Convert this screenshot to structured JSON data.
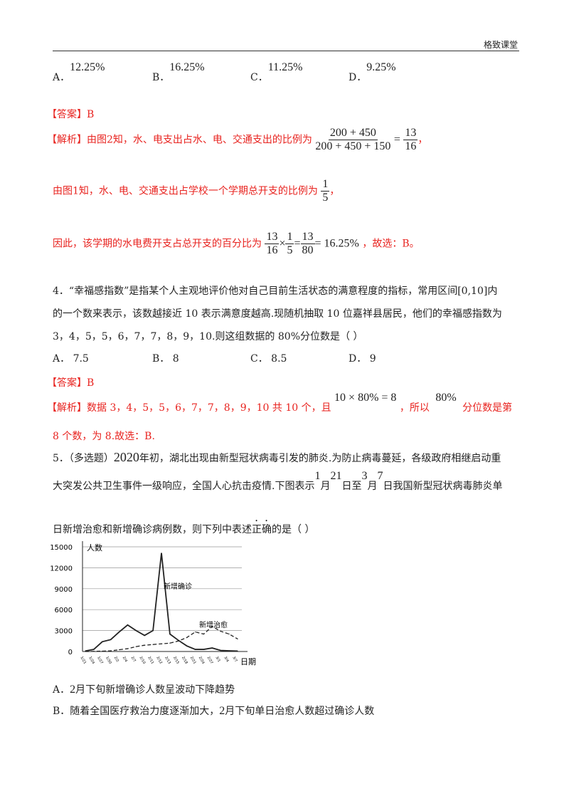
{
  "header": {
    "brand": "格致课堂"
  },
  "q3": {
    "options": [
      {
        "letter": "A．",
        "value": "12.25%"
      },
      {
        "letter": "B．",
        "value": "16.25%"
      },
      {
        "letter": "C．",
        "value": "11.25%"
      },
      {
        "letter": "D．",
        "value": "9.25%"
      }
    ],
    "answer": "【答案】B",
    "analysis1": "【解析】由图2知，水、电支出占水、电、交通支出的比例为",
    "frac1_num": "200 + 450",
    "frac1_den": "200 + 450 + 150",
    "frac1_eq": "=",
    "frac1_rnum": "13",
    "frac1_rden": "16",
    "comma": "，",
    "analysis2": "由图1知，水、电、交通支出占学校一个学期总开支的比例为",
    "frac2_num": "1",
    "frac2_den": "5",
    "analysis3": "因此，该学期的水电费开支占总开支的百分比为",
    "calc": {
      "a_num": "13",
      "a_den": "16",
      "times": "×",
      "b_num": "1",
      "b_den": "5",
      "eq": "=",
      "c_num": "13",
      "c_den": "80",
      "result": "= 16.25%"
    },
    "analysis3_end": "，故选：B。"
  },
  "q4": {
    "line1": "4．“幸福感指数”是指某个人主观地评价他对自己目前生活状态的满意程度的指标，常用区间[0,10]内",
    "line2": "的一个数来表示，该数越接近 10 表示满意度越高.现随机抽取 10 位嘉祥县居民，他们的幸福感指数为",
    "line3": "3，4，5，5，6，7，7，8，9，10.则这组数据的  80%分位数是（      ）",
    "options": [
      {
        "letter": "A．",
        "value": "7.5"
      },
      {
        "letter": "B．",
        "value": "8"
      },
      {
        "letter": "C．",
        "value": "8.5"
      },
      {
        "letter": "D．",
        "value": "9"
      }
    ],
    "answer": "【答案】B",
    "analysis1": "【解析】数据 3，4，5，5，6，7，7，8，9，10 共 10 个，且",
    "expr": "10 × 80% = 8",
    "mid": "，所以",
    "pct": "80%",
    "end": "分位数是第",
    "analysis2": "8 个数，为 8.故选：B."
  },
  "q5": {
    "line1a": "5．（多选题）",
    "year": "2020",
    "line1b": "年初，湖北出现由新型冠状病毒引发的肺炎.为防止病毒蔓延，各级政府相继启动重",
    "line2a": "大突发公共卫生事件一级响应，全国人心抗击疫情.下图表示",
    "m1": "1",
    "yue": "月",
    "d1": "21",
    "ri": "日至",
    "m2": "3",
    "yue2": "月",
    "d2": "7",
    "line2b": "日我国新型冠状病毒肺炎单",
    "line3a": "日新增治愈和新增确诊病例数，则下列中表述",
    "emph": "正确",
    "line3b": "的是（      ）",
    "optA_pre": "A．",
    "optA_num": "2",
    "optA_text": "月下旬新增确诊人数呈波动下降趋势",
    "optB_pre": "B．随着全国医疗救治力度逐渐加大，",
    "optB_num": "2",
    "optB_text": "月下旬单日治愈人数超过确诊人数"
  },
  "chart_data": {
    "type": "line",
    "ylabel": "人数",
    "xlabel": "日期",
    "ylim": [
      0,
      15000
    ],
    "yticks": [
      "15000",
      "12000",
      "9000",
      "6000",
      "3000",
      "0"
    ],
    "grid": true,
    "x": [
      "1/21",
      "1/24",
      "1/27",
      "1/30",
      "2/2",
      "2/4",
      "2/7",
      "2/10",
      "2/11",
      "2/12",
      "2/13",
      "2/15",
      "2/18",
      "2/21",
      "2/24",
      "2/27",
      "3/1",
      "3/4",
      "3/7"
    ],
    "series": [
      {
        "name": "新增确诊",
        "style": "solid",
        "values": [
          80,
          300,
          1400,
          1700,
          2800,
          3800,
          3000,
          2300,
          3000,
          14100,
          2500,
          1600,
          800,
          300,
          300,
          500,
          150,
          100,
          60
        ]
      },
      {
        "name": "新增治愈",
        "style": "dashed",
        "values": [
          0,
          20,
          50,
          100,
          250,
          400,
          700,
          900,
          1000,
          1100,
          1200,
          1500,
          2000,
          2800,
          2500,
          3600,
          2900,
          2500,
          1800
        ]
      }
    ],
    "colors": {
      "line": "#222222",
      "grid": "#999999"
    }
  }
}
